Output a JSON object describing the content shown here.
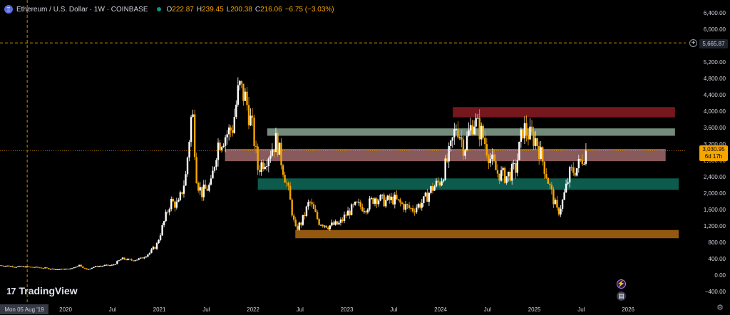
{
  "header": {
    "coin_symbol": "Ξ",
    "title": "Ethereum / U.S. Dollar · 1W · COINBASE",
    "ohlc": [
      {
        "k": "O",
        "v": "222.87"
      },
      {
        "k": "H",
        "v": "239.45"
      },
      {
        "k": "L",
        "v": "200.38"
      },
      {
        "k": "C",
        "v": "216.06"
      }
    ],
    "change": "−6.75 (−3.03%)"
  },
  "branding": {
    "name": "TradingView",
    "mark": "17"
  },
  "crosshair": {
    "date": "Mon 05 Aug '19",
    "price": "5,665.87",
    "price_value": 5665.87
  },
  "last_price": {
    "price": "3,030.95",
    "countdown": "6d 17h",
    "value": 3030.95
  },
  "event_flags": [
    {
      "icon": "lightning-icon",
      "glyph": "⚡"
    },
    {
      "icon": "us-flag-icon",
      "glyph": "▤"
    }
  ],
  "colors": {
    "background": "#000000",
    "bull": "#ffffff",
    "bear": "#f7a600",
    "zone_red": "#8b1a22",
    "zone_pink": "#b5787a",
    "zone_sage": "#8fae9a",
    "zone_teal": "#0f6b5a",
    "zone_orange": "#a4620f"
  },
  "chart_data": {
    "type": "candlestick",
    "title": "",
    "price_axis": {
      "min": -400,
      "max": 6400,
      "step": 400,
      "ticks": [
        "6,400.00",
        "6,000.00",
        "5,600.00",
        "5,200.00",
        "4,800.00",
        "4,400.00",
        "4,000.00",
        "3,600.00",
        "3,200.00",
        "2,800.00",
        "2,400.00",
        "2,000.00",
        "1,600.00",
        "1,200.00",
        "800.00",
        "400.00",
        "0.00",
        "−400.00"
      ],
      "tick_values": [
        6400,
        6000,
        5600,
        5200,
        4800,
        4400,
        4000,
        3600,
        3200,
        2800,
        2400,
        2000,
        1600,
        1200,
        800,
        400,
        0,
        -400
      ]
    },
    "time_axis": {
      "start": 2019.3,
      "end": 2026.6,
      "labels": [
        {
          "t": 2020.0,
          "label": "2020"
        },
        {
          "t": 2020.5,
          "label": "Jul"
        },
        {
          "t": 2021.0,
          "label": "2021"
        },
        {
          "t": 2021.5,
          "label": "Jul"
        },
        {
          "t": 2022.0,
          "label": "2022"
        },
        {
          "t": 2022.5,
          "label": "Jul"
        },
        {
          "t": 2023.0,
          "label": "2023"
        },
        {
          "t": 2023.5,
          "label": "Jul"
        },
        {
          "t": 2024.0,
          "label": "2024"
        },
        {
          "t": 2024.5,
          "label": "Jul"
        },
        {
          "t": 2025.0,
          "label": "2025"
        },
        {
          "t": 2025.5,
          "label": "Jul"
        },
        {
          "t": 2026.0,
          "label": "2026"
        }
      ]
    },
    "price_path": [
      [
        2019.3,
        240
      ],
      [
        2019.45,
        210
      ],
      [
        2019.6,
        200
      ],
      [
        2019.75,
        180
      ],
      [
        2019.9,
        140
      ],
      [
        2020.05,
        150
      ],
      [
        2020.15,
        250
      ],
      [
        2020.22,
        130
      ],
      [
        2020.3,
        200
      ],
      [
        2020.4,
        230
      ],
      [
        2020.5,
        240
      ],
      [
        2020.6,
        400
      ],
      [
        2020.7,
        360
      ],
      [
        2020.8,
        400
      ],
      [
        2020.9,
        550
      ],
      [
        2020.97,
        730
      ],
      [
        2021.05,
        1300
      ],
      [
        2021.12,
        1800
      ],
      [
        2021.2,
        1700
      ],
      [
        2021.28,
        2400
      ],
      [
        2021.35,
        4100
      ],
      [
        2021.4,
        2300
      ],
      [
        2021.45,
        2000
      ],
      [
        2021.55,
        2200
      ],
      [
        2021.62,
        3200
      ],
      [
        2021.7,
        3400
      ],
      [
        2021.78,
        3600
      ],
      [
        2021.85,
        4600
      ],
      [
        2021.92,
        4300
      ],
      [
        2022.0,
        3500
      ],
      [
        2022.05,
        2600
      ],
      [
        2022.15,
        2900
      ],
      [
        2022.25,
        3300
      ],
      [
        2022.3,
        2800
      ],
      [
        2022.38,
        2000
      ],
      [
        2022.45,
        1100
      ],
      [
        2022.52,
        1300
      ],
      [
        2022.6,
        1800
      ],
      [
        2022.7,
        1300
      ],
      [
        2022.8,
        1200
      ],
      [
        2022.92,
        1250
      ],
      [
        2023.0,
        1500
      ],
      [
        2023.1,
        1700
      ],
      [
        2023.2,
        1650
      ],
      [
        2023.3,
        1900
      ],
      [
        2023.4,
        1800
      ],
      [
        2023.5,
        1850
      ],
      [
        2023.6,
        1700
      ],
      [
        2023.7,
        1600
      ],
      [
        2023.82,
        1800
      ],
      [
        2023.9,
        2100
      ],
      [
        2024.0,
        2300
      ],
      [
        2024.1,
        3000
      ],
      [
        2024.17,
        3700
      ],
      [
        2024.25,
        3100
      ],
      [
        2024.35,
        3800
      ],
      [
        2024.45,
        3400
      ],
      [
        2024.52,
        2900
      ],
      [
        2024.6,
        2500
      ],
      [
        2024.7,
        2400
      ],
      [
        2024.8,
        2600
      ],
      [
        2024.88,
        3600
      ],
      [
        2024.95,
        3400
      ],
      [
        2025.02,
        3300
      ],
      [
        2025.1,
        2700
      ],
      [
        2025.17,
        2100
      ],
      [
        2025.25,
        1500
      ],
      [
        2025.3,
        1800
      ],
      [
        2025.38,
        2500
      ],
      [
        2025.45,
        2600
      ],
      [
        2025.5,
        2800
      ],
      [
        2025.55,
        3030
      ]
    ],
    "zones": [
      {
        "name": "red",
        "from": 2024.13,
        "to": 2026.5,
        "low": 3850,
        "high": 4100
      },
      {
        "name": "sage",
        "from": 2022.15,
        "to": 2026.5,
        "low": 3400,
        "high": 3580
      },
      {
        "name": "pink",
        "from": 2021.7,
        "to": 2026.4,
        "low": 2780,
        "high": 3080
      },
      {
        "name": "teal",
        "from": 2022.05,
        "to": 2026.6,
        "low": 2080,
        "high": 2360
      },
      {
        "name": "orange",
        "from": 2022.45,
        "to": 2026.6,
        "low": 900,
        "high": 1100
      }
    ]
  }
}
